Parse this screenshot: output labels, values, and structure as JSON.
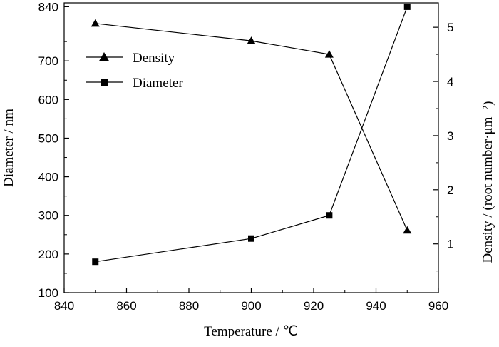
{
  "chart_data": {
    "type": "line",
    "xlabel": "Temperature / ℃",
    "ylabel_left": "Diameter / nm",
    "ylabel_right": "Density / (root number·μm⁻²)",
    "xlim": [
      840,
      960
    ],
    "ylim_left": [
      100,
      850
    ],
    "ylim_right": [
      0.1,
      5.45
    ],
    "x_ticks": [
      "840",
      "860",
      "880",
      "900",
      "920",
      "940",
      "960"
    ],
    "y_left_ticks": [
      "100",
      "200",
      "300",
      "400",
      "500",
      "600",
      "700",
      "840"
    ],
    "y_right_ticks": [
      "1",
      "2",
      "3",
      "4",
      "5"
    ],
    "grid": false,
    "legend_position": "upper-left",
    "series": [
      {
        "name": "Density",
        "axis": "right",
        "marker": "triangle",
        "x": [
          850,
          900,
          925,
          950
        ],
        "y": [
          5.07,
          4.75,
          4.5,
          1.25
        ]
      },
      {
        "name": "Diameter",
        "axis": "left",
        "marker": "square",
        "x": [
          850,
          900,
          925,
          950
        ],
        "y": [
          180,
          240,
          300,
          840
        ]
      }
    ]
  }
}
